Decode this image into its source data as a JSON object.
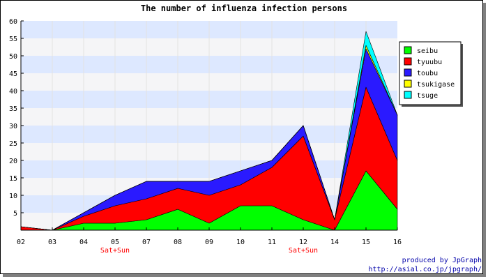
{
  "chart_data": {
    "type": "area",
    "stacked": true,
    "title": "The number of influenza infection persons",
    "xlabel": "",
    "ylabel": "",
    "categories": [
      "02",
      "03",
      "04",
      "05",
      "07",
      "08",
      "09",
      "10",
      "11",
      "12",
      "14",
      "15",
      "16"
    ],
    "category_annotations": [
      {
        "category": "05",
        "text": "Sat+Sun"
      },
      {
        "category": "12",
        "text": "Sat+Sun"
      }
    ],
    "ylim": [
      0,
      60
    ],
    "yticks": [
      5,
      10,
      15,
      20,
      25,
      30,
      35,
      40,
      45,
      50,
      55,
      60
    ],
    "grid": "horizontal bands",
    "band_colors": [
      "#dde8ff",
      "#f5f5f7"
    ],
    "legend": "right",
    "series": [
      {
        "name": "seibu",
        "color": "#00ff00",
        "values": [
          0,
          0,
          2,
          2,
          3,
          6,
          2,
          7,
          7,
          3,
          0,
          17,
          6
        ]
      },
      {
        "name": "tyuubu",
        "color": "#ff0000",
        "values": [
          1,
          0,
          2,
          5,
          6,
          6,
          8,
          6,
          11,
          24,
          3,
          24,
          14
        ]
      },
      {
        "name": "toubu",
        "color": "#2a1aff",
        "values": [
          0,
          0,
          1,
          3,
          5,
          2,
          4,
          4,
          2,
          3,
          0,
          11,
          13
        ]
      },
      {
        "name": "tsukigase",
        "color": "#ffff00",
        "values": [
          0,
          0,
          0,
          0,
          0,
          0,
          0,
          0,
          0,
          0,
          0,
          1,
          0
        ]
      },
      {
        "name": "tsuge",
        "color": "#00ffff",
        "values": [
          0,
          0,
          0,
          0,
          0,
          0,
          0,
          0,
          0,
          0,
          0,
          4,
          0
        ]
      }
    ]
  },
  "credits": {
    "line1": "produced by JpGraph",
    "line2": "http://asial.co.jp/jpgraph/"
  }
}
